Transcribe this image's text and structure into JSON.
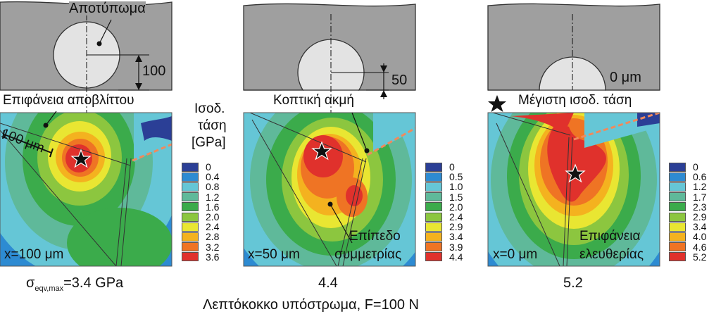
{
  "panels": [
    {
      "id": "a",
      "imprint_label": "Αποτύπωμα",
      "dimension_label": "100",
      "surface_label": "Επιφάνεια αποβλίττου",
      "scale_label": "100 μm",
      "position_label": "x=100 μm",
      "max_stress_label": "3.4 GPa",
      "legend_values": [
        "0",
        "0.4",
        "0.8",
        "1.2",
        "1.6",
        "2.0",
        "2.4",
        "2.8",
        "3.2",
        "3.6"
      ]
    },
    {
      "id": "b",
      "dimension_label": "50",
      "edge_label": "Κοπτική ακμή",
      "position_label": "x=50 μm",
      "plane_label_1": "Επίπεδο",
      "plane_label_2": "συμμετρίας",
      "max_stress_label": "4.4",
      "legend_values": [
        "0",
        "0.5",
        "1.0",
        "1.5",
        "2.0",
        "2.4",
        "2.9",
        "3.4",
        "3.9",
        "4.4"
      ]
    },
    {
      "id": "c",
      "dimension_label": "0 μm",
      "marker_label": "Μέγιστη ισοδ. τάση",
      "position_label": "x=0 μm",
      "free_surface_label_1": "Επιφάνεια",
      "free_surface_label_2": "ελευθερίας",
      "max_stress_label": "5.2",
      "legend_values": [
        "0",
        "0.6",
        "1.2",
        "1.7",
        "2.3",
        "2.9",
        "3.4",
        "4.0",
        "4.6",
        "5.2"
      ]
    }
  ],
  "legend_title": [
    "Ισοδ.",
    "τάση",
    "[GPa]"
  ],
  "sigma_symbol": "σ",
  "sigma_subscript": "eqv,max",
  "sigma_equals": "=",
  "caption": "Λεπτόκοκκο υπόστρωμα, F=100 N",
  "legend_colors": [
    "#2b3f96",
    "#2d8bd2",
    "#65c6d6",
    "#5fb99a",
    "#3bab4b",
    "#8cc63f",
    "#e9e632",
    "#f4b21f",
    "#ef7424",
    "#e0312c"
  ],
  "marker_icon": "star-icon"
}
